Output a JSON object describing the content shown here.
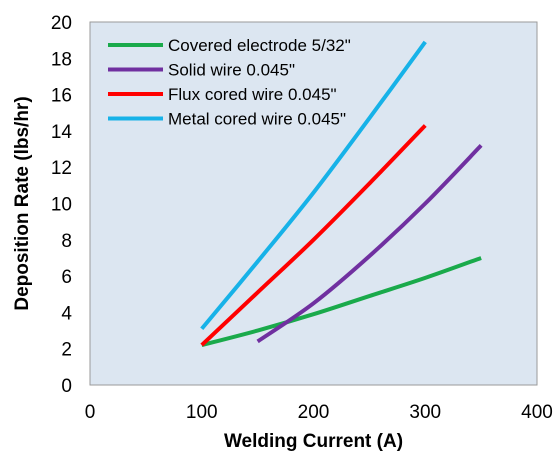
{
  "chart_data": {
    "type": "line",
    "xlabel": "Welding Current (A)",
    "ylabel": "Deposition Rate (lbs/hr)",
    "xlim": [
      0,
      400
    ],
    "ylim": [
      0,
      20
    ],
    "x_ticks": [
      "0",
      "100",
      "200",
      "300",
      "400"
    ],
    "y_ticks": [
      "0",
      "2",
      "4",
      "6",
      "8",
      "10",
      "12",
      "14",
      "16",
      "18",
      "20"
    ],
    "grid": false,
    "legend_position": "top-left",
    "plot_background": "#dce6f1",
    "series": [
      {
        "name": "Covered electrode 5/32\"",
        "color": "#1aaa4b",
        "x": [
          100,
          150,
          200,
          250,
          300,
          350
        ],
        "y": [
          2.2,
          3.0,
          3.9,
          4.9,
          5.9,
          7.0
        ]
      },
      {
        "name": "Solid wire 0.045\"",
        "color": "#7030a0",
        "x": [
          150,
          200,
          250,
          300,
          350
        ],
        "y": [
          2.4,
          4.5,
          7.1,
          10.0,
          13.2
        ]
      },
      {
        "name": "Flux cored wire 0.045\"",
        "color": "#ff0000",
        "x": [
          100,
          150,
          200,
          250,
          300
        ],
        "y": [
          2.2,
          5.1,
          8.0,
          11.1,
          14.3
        ]
      },
      {
        "name": "Metal cored wire 0.045\"",
        "color": "#17b2e8",
        "x": [
          100,
          150,
          200,
          250,
          300
        ],
        "y": [
          3.1,
          6.8,
          10.6,
          14.7,
          18.9
        ]
      }
    ]
  }
}
